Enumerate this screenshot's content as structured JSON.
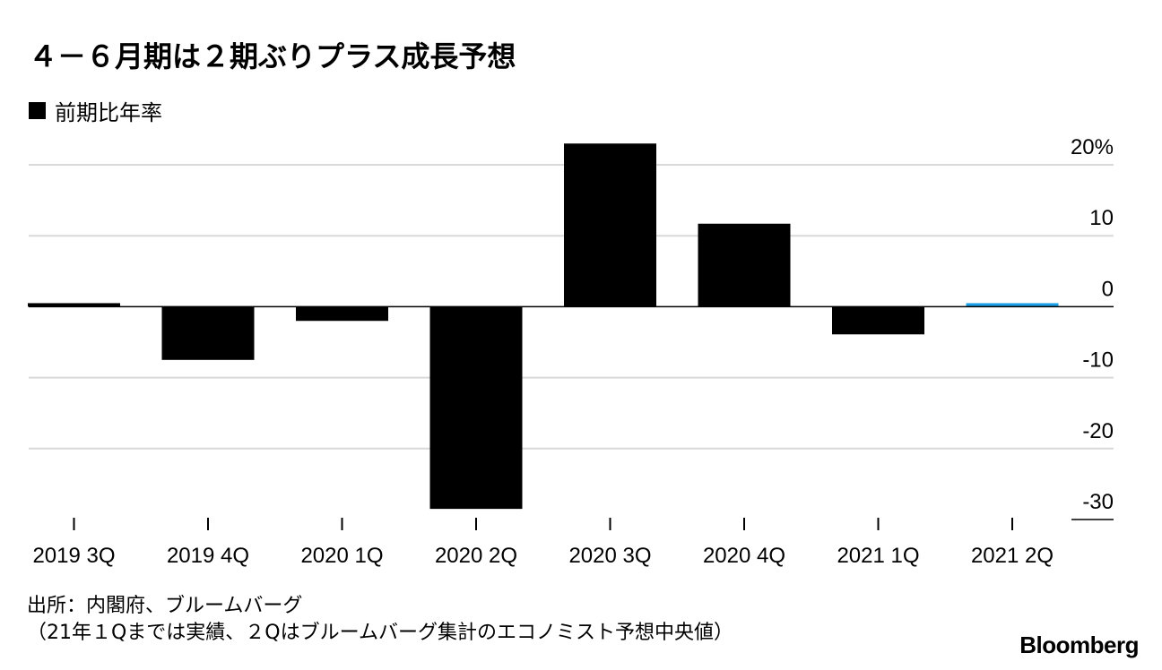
{
  "chart_data": {
    "type": "bar",
    "title": "４－６月期は２期ぶりプラス成長予想",
    "legend": "前期比年率",
    "categories": [
      "2019 3Q",
      "2019 4Q",
      "2020 1Q",
      "2020 2Q",
      "2020 3Q",
      "2020 4Q",
      "2021 1Q",
      "2021 2Q"
    ],
    "values": [
      0.5,
      -7.5,
      -2.0,
      -28.5,
      23.0,
      11.7,
      -3.9,
      0.5
    ],
    "bar_colors": [
      "#000000",
      "#000000",
      "#000000",
      "#000000",
      "#000000",
      "#000000",
      "#000000",
      "#1ea0e6"
    ],
    "ylim": [
      -30,
      20
    ],
    "yticks": [
      20,
      10,
      0,
      -10,
      -20,
      -30
    ],
    "ytick_labels": [
      "20%",
      "10",
      "0",
      "-10",
      "-20",
      "-30"
    ],
    "y_axis_side": "right",
    "grid": true,
    "legend_position": "top-left"
  },
  "footer": {
    "source": "出所：内閣府、ブルームバーグ",
    "note": "（21年１Qまでは実績、２Qはブルームバーグ集計のエコノミスト予想中央値）",
    "brand": "Bloomberg"
  }
}
